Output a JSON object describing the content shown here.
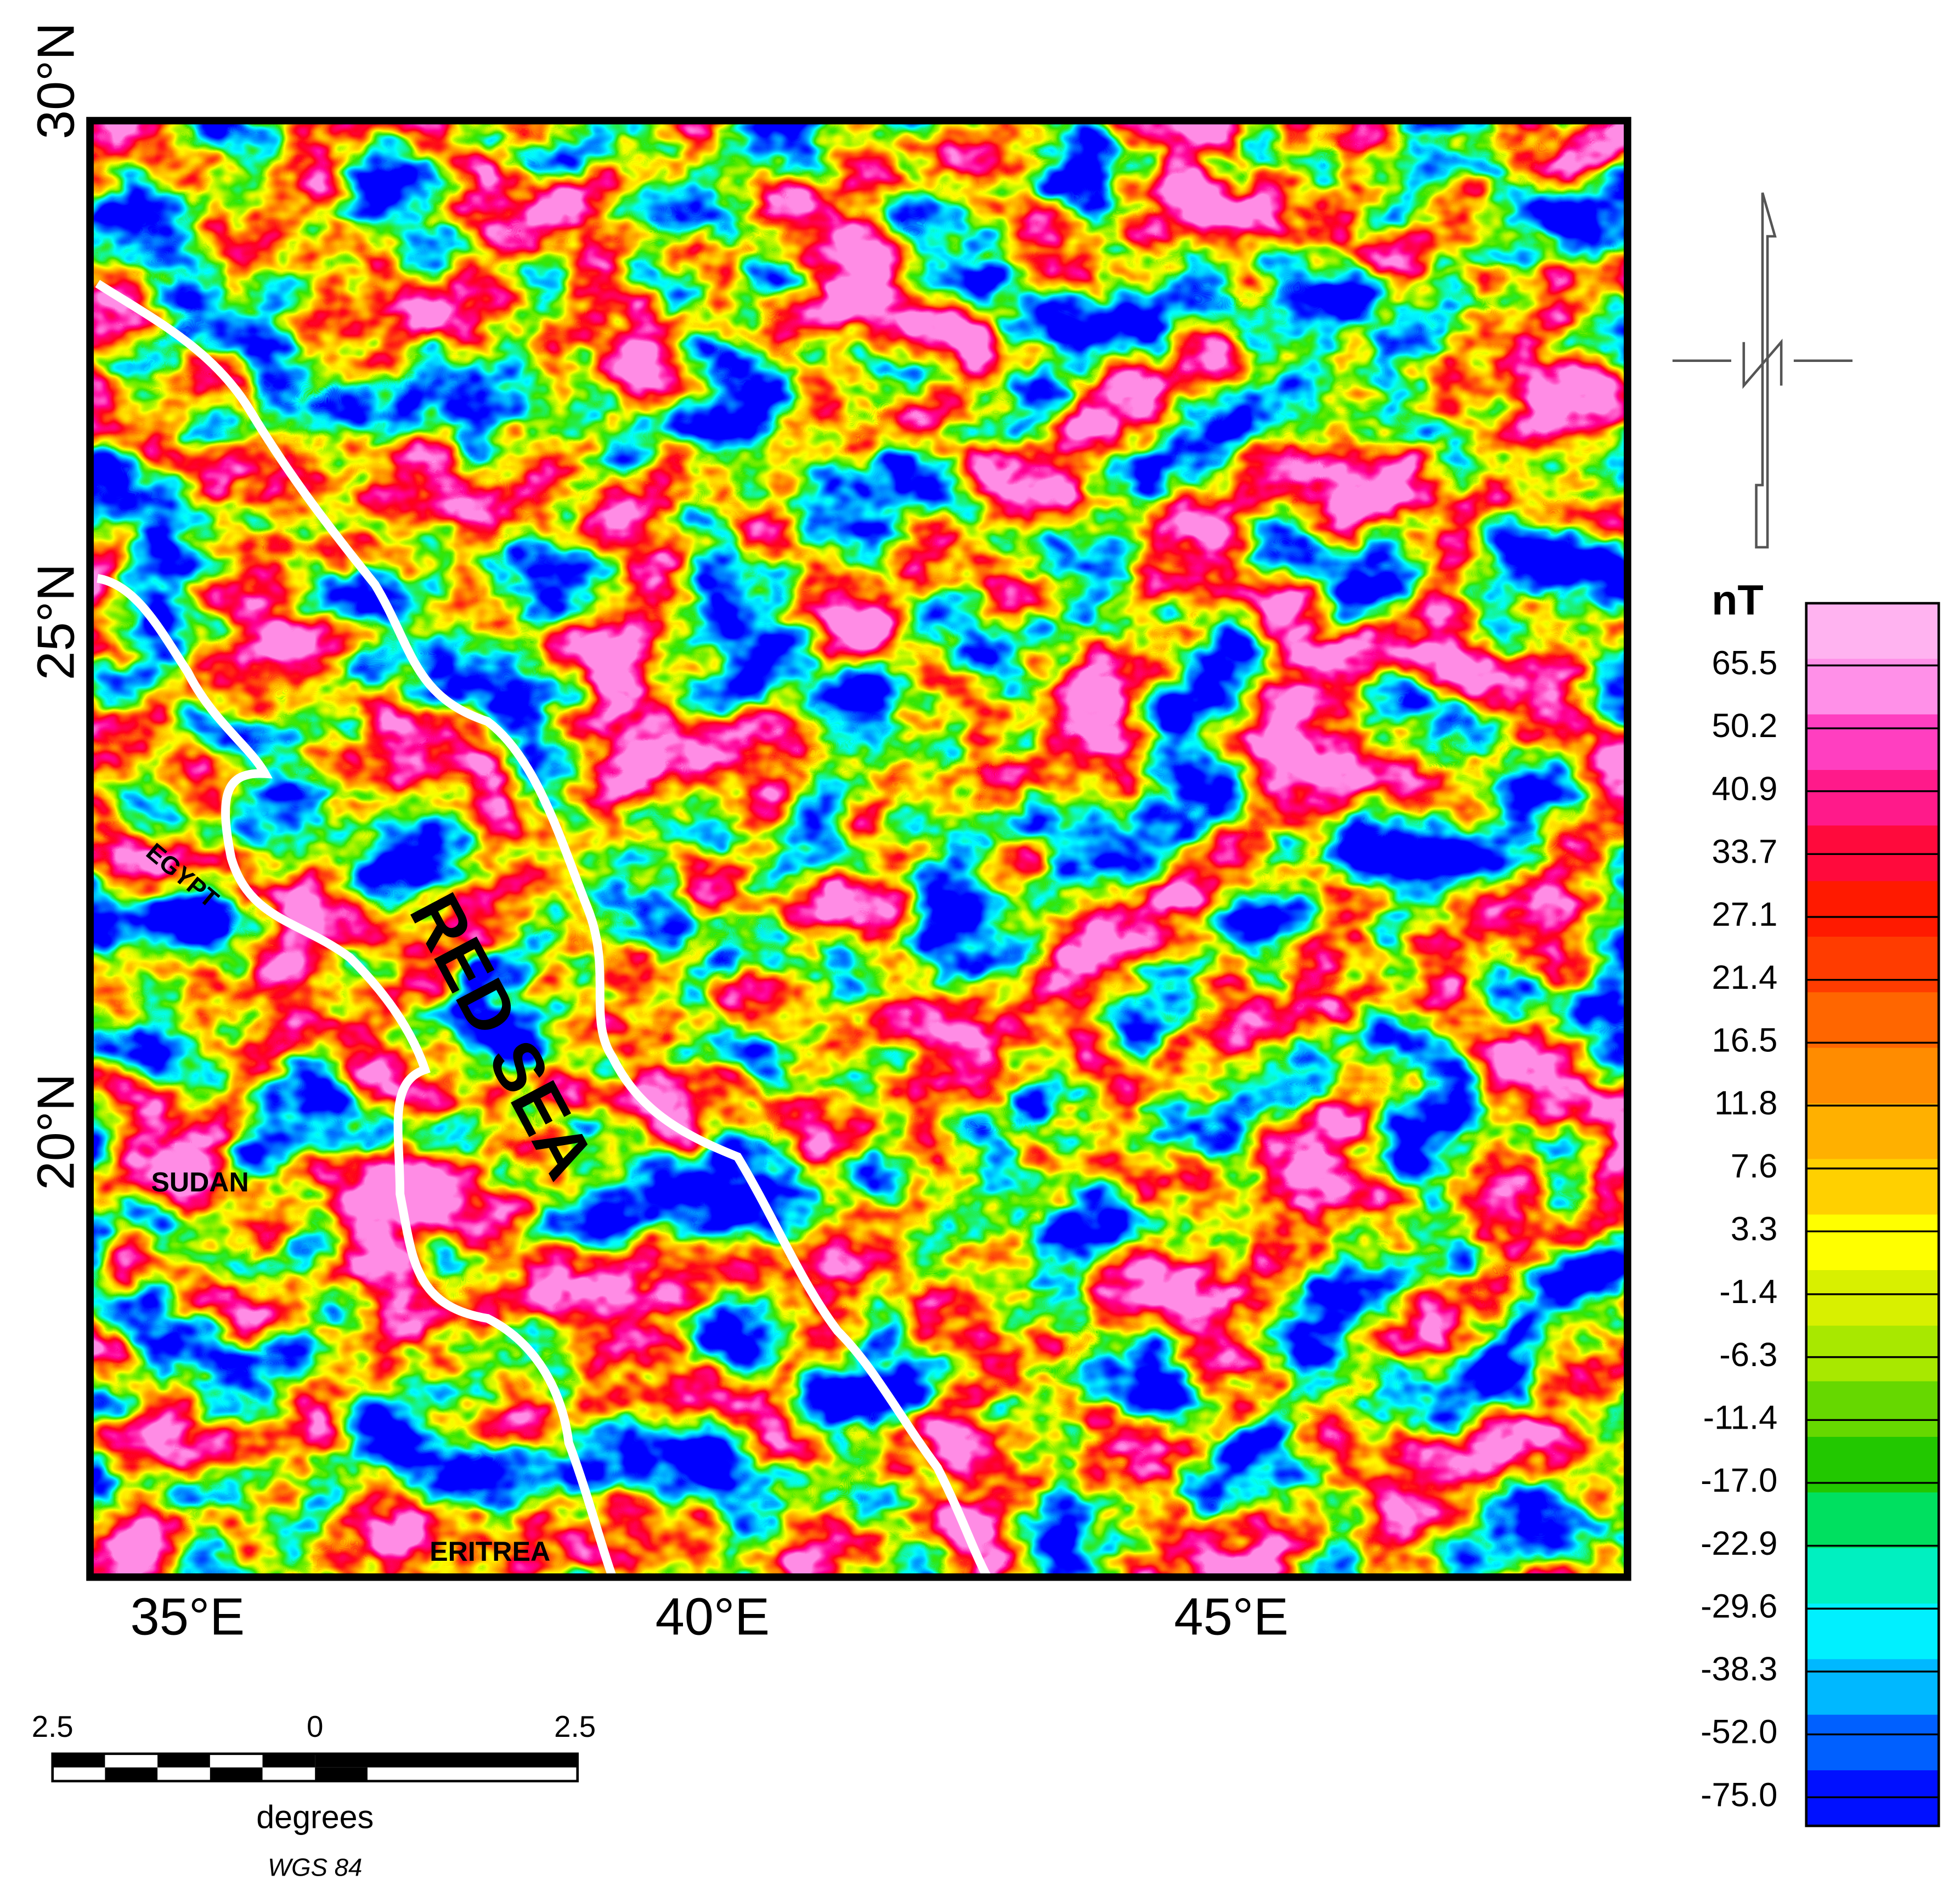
{
  "map": {
    "lat_labels": [
      "30°N",
      "25°N",
      "20°N"
    ],
    "lon_labels": [
      "35°E",
      "40°E",
      "45°E"
    ],
    "place_labels": [
      "EGYPT",
      "SUDAN",
      "RED SEA",
      "ERITREA"
    ]
  },
  "legend": {
    "unit": "nT",
    "labels": [
      "65.5",
      "50.2",
      "40.9",
      "33.7",
      "27.1",
      "21.4",
      "16.5",
      "11.8",
      "7.6",
      "3.3",
      "-1.4",
      "-6.3",
      "-11.4",
      "-17.0",
      "-22.9",
      "-29.6",
      "-38.3",
      "-52.0",
      "-75.0"
    ]
  },
  "scale_bar": {
    "labels": [
      "2.5",
      "0",
      "2.5"
    ],
    "unit": "degrees",
    "datum": "WGS 84"
  }
}
